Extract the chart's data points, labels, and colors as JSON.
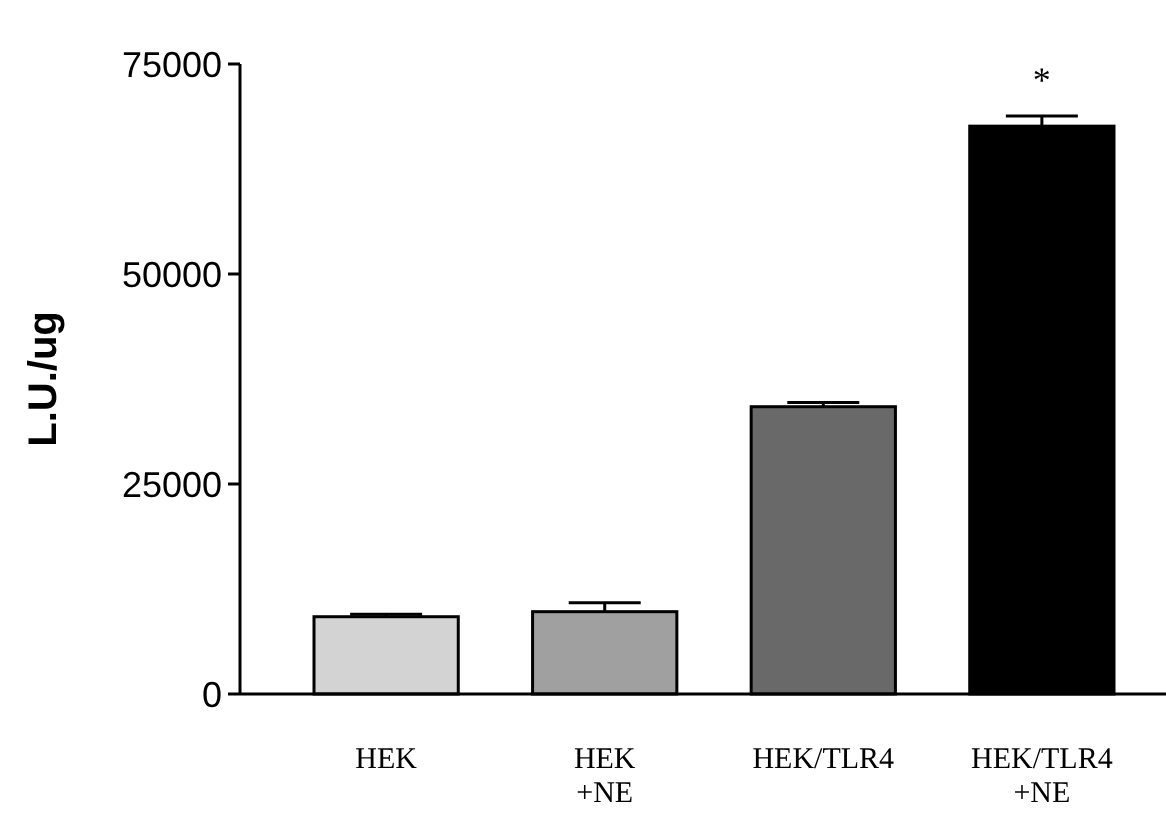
{
  "chart_data": {
    "type": "bar",
    "ylabel": "L.U./ug",
    "categories": [
      "HEK",
      "HEK\n+NE",
      "HEK/TLR4",
      "HEK/TLR4\n+NE"
    ],
    "values": [
      9200,
      9800,
      34200,
      67600
    ],
    "colors": [
      "#d3d3d3",
      "#a0a0a0",
      "#696969",
      "#000000"
    ],
    "errors": [
      [
        9200,
        9500
      ],
      [
        9800,
        10850
      ],
      [
        34200,
        34700
      ],
      [
        67600,
        68800
      ]
    ],
    "ylim": [
      0,
      75000
    ],
    "yticks": [
      0,
      25000,
      50000,
      75000
    ],
    "annotations": [
      {
        "text": "*",
        "x": "HEK/TLR4\n+NE",
        "y": 68800
      }
    ]
  }
}
